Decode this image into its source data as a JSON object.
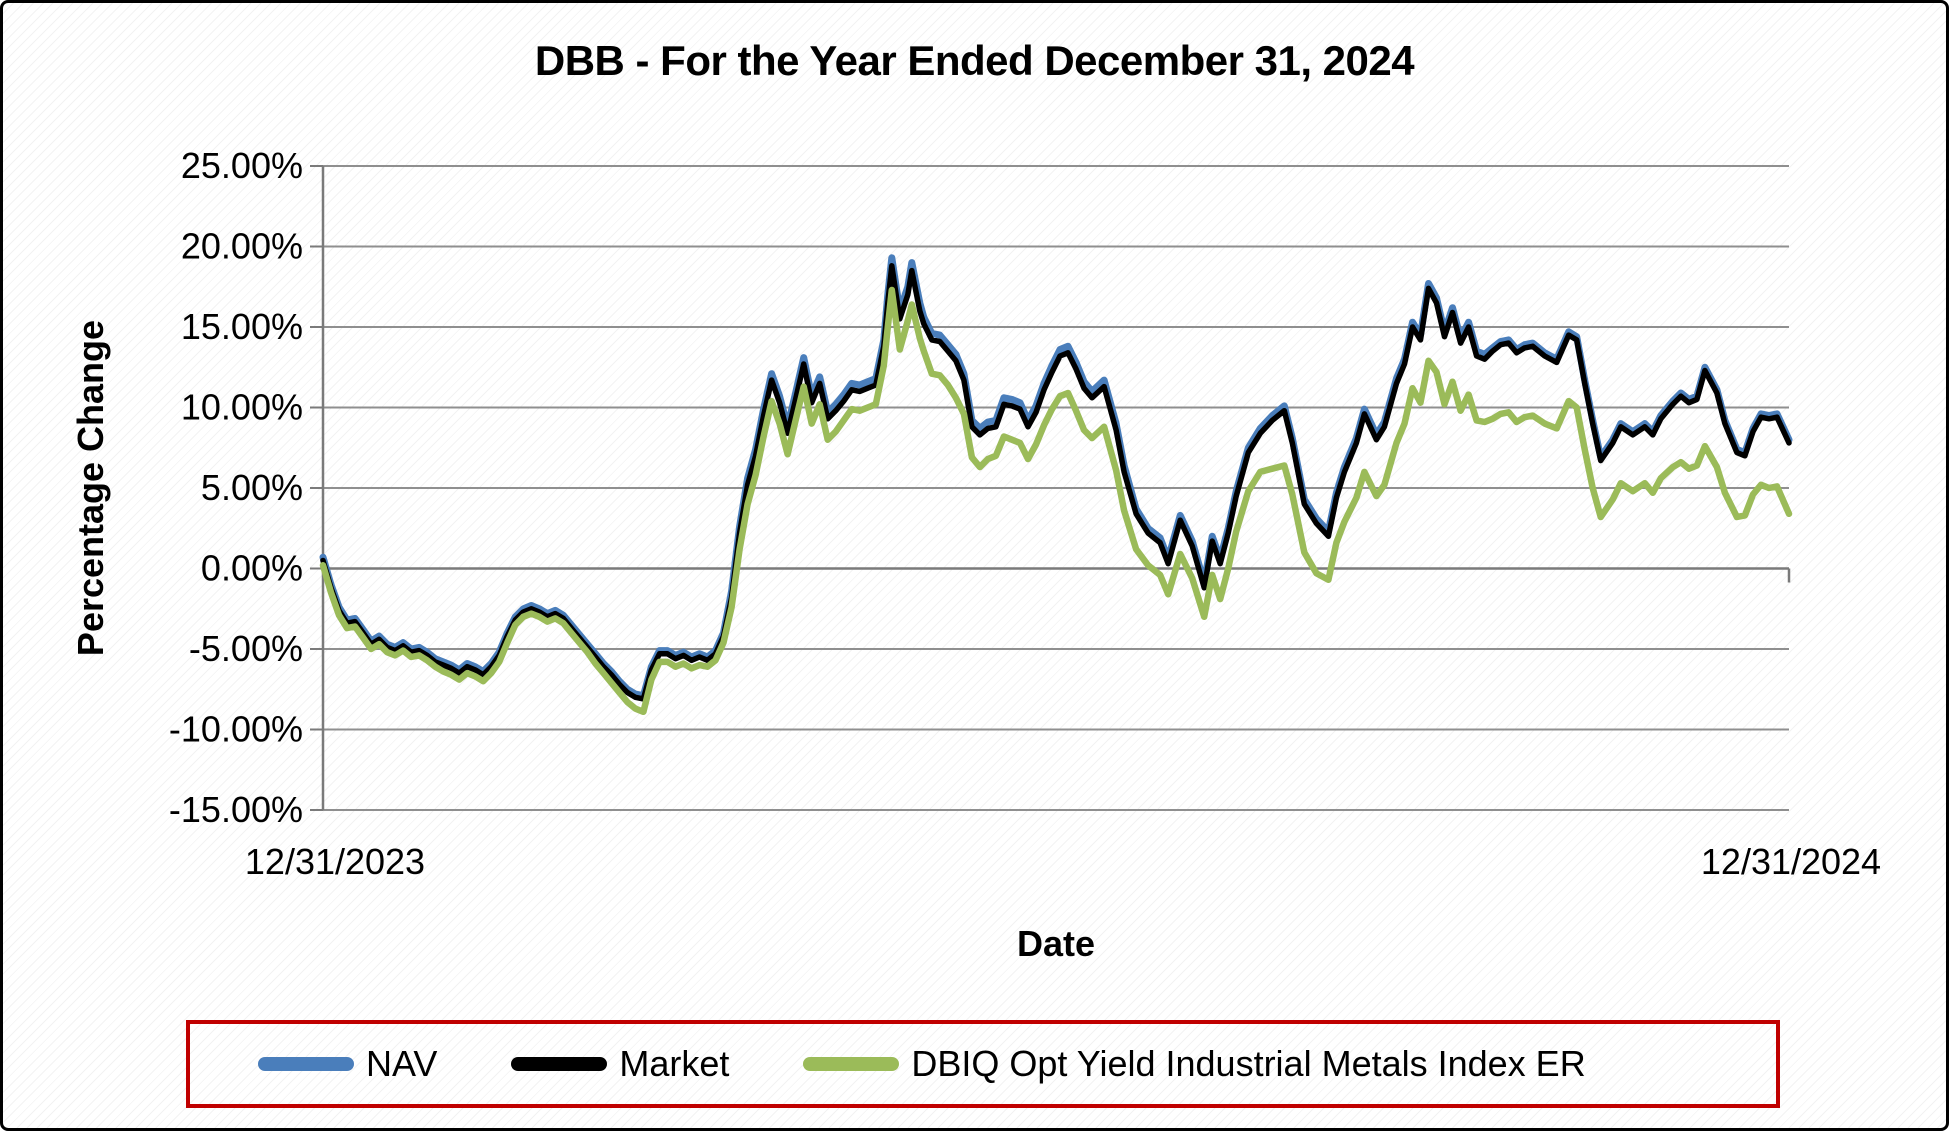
{
  "chart_data": {
    "type": "line",
    "title": "DBB - For the Year Ended December 31, 2024",
    "xlabel": "Date",
    "ylabel": "Percentage Change",
    "x_tick_labels": [
      "12/31/2023",
      "12/31/2024"
    ],
    "y_ticks": [
      {
        "label": "25.00%",
        "value": 25
      },
      {
        "label": "20.00%",
        "value": 20
      },
      {
        "label": "15.00%",
        "value": 15
      },
      {
        "label": "10.00%",
        "value": 10
      },
      {
        "label": "5.00%",
        "value": 5
      },
      {
        "label": "0.00%",
        "value": 0
      },
      {
        "label": "-5.00%",
        "value": -5
      },
      {
        "label": "-10.00%",
        "value": -10
      },
      {
        "label": "-15.00%",
        "value": -15
      }
    ],
    "ylim": [
      -15,
      25
    ],
    "xlim_days": [
      0,
      366
    ],
    "grid": true,
    "legend_position": "bottom",
    "x_days": [
      0,
      2,
      4,
      6,
      8,
      10,
      12,
      14,
      16,
      18,
      20,
      22,
      24,
      26,
      28,
      30,
      32,
      34,
      36,
      38,
      40,
      42,
      44,
      46,
      48,
      50,
      52,
      54,
      56,
      58,
      60,
      62,
      64,
      66,
      68,
      70,
      72,
      74,
      76,
      78,
      80,
      82,
      84,
      86,
      88,
      90,
      92,
      94,
      96,
      98,
      100,
      102,
      104,
      106,
      108,
      110,
      112,
      114,
      116,
      118,
      120,
      122,
      124,
      126,
      128,
      130,
      132,
      134,
      136,
      138,
      140,
      141,
      142,
      144,
      146,
      147,
      149,
      150,
      152,
      154,
      156,
      158,
      160,
      162,
      164,
      166,
      168,
      170,
      172,
      174,
      176,
      178,
      180,
      182,
      184,
      186,
      188,
      190,
      192,
      195,
      198,
      200,
      203,
      206,
      209,
      211,
      214,
      217,
      220,
      222,
      224,
      226,
      228,
      231,
      234,
      237,
      240,
      242,
      245,
      248,
      251,
      253,
      255,
      258,
      260,
      263,
      265,
      268,
      270,
      272,
      274,
      276,
      278,
      280,
      282,
      284,
      286,
      288,
      290,
      292,
      294,
      296,
      298,
      300,
      302,
      305,
      308,
      311,
      313,
      315,
      317,
      319,
      322,
      324,
      327,
      330,
      332,
      334,
      337,
      339,
      341,
      343,
      345,
      348,
      350,
      353,
      355,
      357,
      359,
      361,
      363,
      366
    ],
    "series": [
      {
        "name": "NAV",
        "color": "#4a7ebb",
        "stroke_width": 7,
        "values": [
          0.7,
          -1.0,
          -2.4,
          -3.2,
          -3.1,
          -3.8,
          -4.5,
          -4.2,
          -4.7,
          -4.9,
          -4.6,
          -5.0,
          -4.9,
          -5.2,
          -5.6,
          -5.8,
          -6.0,
          -6.3,
          -5.9,
          -6.1,
          -6.4,
          -5.9,
          -5.2,
          -4.0,
          -3.0,
          -2.5,
          -2.3,
          -2.5,
          -2.8,
          -2.6,
          -2.9,
          -3.5,
          -4.1,
          -4.7,
          -5.3,
          -5.9,
          -6.4,
          -7.0,
          -7.5,
          -7.8,
          -7.9,
          -6.1,
          -5.1,
          -5.1,
          -5.4,
          -5.2,
          -5.5,
          -5.3,
          -5.5,
          -5.1,
          -4.0,
          -1.4,
          2.6,
          5.6,
          7.4,
          9.9,
          12.1,
          10.7,
          8.8,
          10.9,
          13.1,
          10.7,
          11.9,
          9.7,
          10.2,
          10.8,
          11.5,
          11.4,
          11.6,
          11.8,
          14.2,
          17.0,
          19.3,
          16.0,
          17.5,
          19.0,
          16.5,
          15.6,
          14.6,
          14.5,
          13.9,
          13.3,
          12.1,
          9.2,
          8.7,
          9.1,
          9.2,
          10.6,
          10.5,
          10.3,
          9.2,
          10.1,
          11.5,
          12.6,
          13.6,
          13.8,
          12.8,
          11.6,
          11.0,
          11.7,
          9.0,
          6.4,
          3.7,
          2.5,
          1.9,
          0.6,
          3.3,
          1.7,
          -0.9,
          2.0,
          0.6,
          2.5,
          4.8,
          7.5,
          8.7,
          9.5,
          10.1,
          8.1,
          4.3,
          3.1,
          2.3,
          4.7,
          6.3,
          8.1,
          9.9,
          8.3,
          9.1,
          11.8,
          13.0,
          15.3,
          14.5,
          17.7,
          16.8,
          14.7,
          16.2,
          14.3,
          15.3,
          13.5,
          13.3,
          13.7,
          14.1,
          14.2,
          13.6,
          13.9,
          14.0,
          13.4,
          13.0,
          14.7,
          14.4,
          11.7,
          9.2,
          6.9,
          8.0,
          9.0,
          8.5,
          9.0,
          8.5,
          9.5,
          10.4,
          10.9,
          10.5,
          10.7,
          12.5,
          11.1,
          9.2,
          7.4,
          7.2,
          8.7,
          9.6,
          9.5,
          9.6,
          8.0
        ]
      },
      {
        "name": "Market",
        "color": "#000000",
        "stroke_width": 5.5,
        "values": [
          0.5,
          -1.2,
          -2.6,
          -3.4,
          -3.3,
          -4.0,
          -4.7,
          -4.4,
          -4.9,
          -5.1,
          -4.8,
          -5.2,
          -5.1,
          -5.4,
          -5.8,
          -6.0,
          -6.2,
          -6.5,
          -6.1,
          -6.3,
          -6.6,
          -6.1,
          -5.4,
          -4.2,
          -3.2,
          -2.7,
          -2.5,
          -2.7,
          -3.0,
          -2.8,
          -3.1,
          -3.7,
          -4.3,
          -4.9,
          -5.5,
          -6.1,
          -6.6,
          -7.2,
          -7.7,
          -8.0,
          -8.1,
          -6.3,
          -5.3,
          -5.3,
          -5.6,
          -5.4,
          -5.7,
          -5.5,
          -5.7,
          -5.3,
          -4.2,
          -1.8,
          2.2,
          5.2,
          7.0,
          9.5,
          11.7,
          10.3,
          8.4,
          10.5,
          12.7,
          10.3,
          11.5,
          9.3,
          9.8,
          10.4,
          11.1,
          11.0,
          11.2,
          11.4,
          13.8,
          16.5,
          18.8,
          15.5,
          17.0,
          18.5,
          16.0,
          15.2,
          14.2,
          14.1,
          13.5,
          12.9,
          11.7,
          8.8,
          8.3,
          8.7,
          8.8,
          10.2,
          10.1,
          9.9,
          8.8,
          9.7,
          11.1,
          12.2,
          13.2,
          13.4,
          12.4,
          11.2,
          10.6,
          11.3,
          8.6,
          6.0,
          3.4,
          2.2,
          1.6,
          0.3,
          3.0,
          1.4,
          -1.2,
          1.7,
          0.3,
          2.2,
          4.5,
          7.2,
          8.4,
          9.2,
          9.8,
          7.8,
          4.0,
          2.8,
          2.0,
          4.4,
          6.0,
          7.8,
          9.6,
          8.0,
          8.8,
          11.5,
          12.7,
          15.0,
          14.2,
          17.4,
          16.5,
          14.4,
          15.9,
          14.0,
          15.0,
          13.2,
          13.0,
          13.5,
          13.9,
          14.0,
          13.4,
          13.7,
          13.8,
          13.2,
          12.8,
          14.5,
          14.2,
          11.5,
          9.0,
          6.7,
          7.8,
          8.8,
          8.3,
          8.8,
          8.3,
          9.3,
          10.2,
          10.7,
          10.3,
          10.5,
          12.3,
          10.9,
          9.0,
          7.2,
          7.0,
          8.5,
          9.4,
          9.3,
          9.4,
          7.8
        ]
      },
      {
        "name": "DBIQ Opt Yield Industrial Metals Index ER",
        "color": "#9bbb59",
        "stroke_width": 6.5,
        "values": [
          0.2,
          -1.5,
          -2.9,
          -3.7,
          -3.6,
          -4.3,
          -5.0,
          -4.7,
          -5.2,
          -5.4,
          -5.1,
          -5.5,
          -5.4,
          -5.7,
          -6.1,
          -6.4,
          -6.6,
          -6.9,
          -6.5,
          -6.7,
          -7.0,
          -6.5,
          -5.8,
          -4.6,
          -3.5,
          -3.0,
          -2.8,
          -3.0,
          -3.3,
          -3.1,
          -3.4,
          -4.0,
          -4.6,
          -5.2,
          -5.9,
          -6.5,
          -7.1,
          -7.7,
          -8.3,
          -8.7,
          -8.9,
          -6.9,
          -5.8,
          -5.8,
          -6.1,
          -5.9,
          -6.2,
          -6.0,
          -6.1,
          -5.7,
          -4.6,
          -2.4,
          1.2,
          4.0,
          5.8,
          8.2,
          10.4,
          9.0,
          7.1,
          9.2,
          11.3,
          9.0,
          10.2,
          8.0,
          8.5,
          9.2,
          9.9,
          9.8,
          10.0,
          10.2,
          12.6,
          15.0,
          17.3,
          13.6,
          15.4,
          16.4,
          14.3,
          13.5,
          12.1,
          12.0,
          11.4,
          10.6,
          9.6,
          6.9,
          6.3,
          6.8,
          7.0,
          8.2,
          8.0,
          7.8,
          6.8,
          7.7,
          8.9,
          9.9,
          10.7,
          10.9,
          9.8,
          8.6,
          8.1,
          8.8,
          6.1,
          3.6,
          1.2,
          0.2,
          -0.4,
          -1.6,
          0.9,
          -0.6,
          -3.0,
          -0.4,
          -1.9,
          0.0,
          2.3,
          4.8,
          6.0,
          6.2,
          6.4,
          4.6,
          1.0,
          -0.3,
          -0.7,
          1.6,
          2.9,
          4.4,
          6.0,
          4.5,
          5.2,
          7.8,
          9.0,
          11.2,
          10.3,
          12.9,
          12.2,
          10.2,
          11.6,
          9.8,
          10.8,
          9.2,
          9.1,
          9.3,
          9.6,
          9.7,
          9.1,
          9.4,
          9.5,
          9.0,
          8.7,
          10.4,
          10.0,
          7.4,
          5.0,
          3.2,
          4.3,
          5.3,
          4.8,
          5.3,
          4.7,
          5.6,
          6.3,
          6.6,
          6.2,
          6.4,
          7.6,
          6.3,
          4.7,
          3.2,
          3.3,
          4.6,
          5.2,
          5.0,
          5.1,
          3.4
        ]
      }
    ],
    "colors": {
      "gridline": "#8f8f8f",
      "axis": "#7a7a7a",
      "legend_border": "#c00000"
    }
  }
}
